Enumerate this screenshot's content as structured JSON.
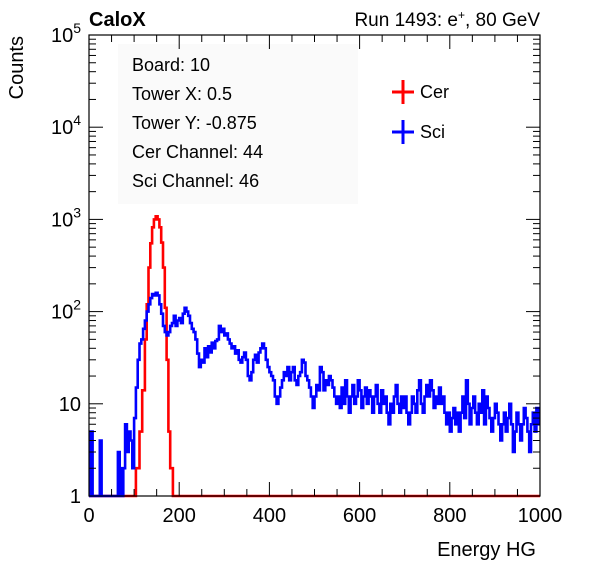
{
  "header": {
    "brand": "CaloX",
    "run_text": "Run 1493: e",
    "run_sup": "+",
    "run_tail": ", 80 GeV"
  },
  "info_box": {
    "lines": [
      "Board: 10",
      "Tower X: 0.5",
      "Tower Y: -0.875",
      "Cer Channel: 44",
      "Sci Channel: 46"
    ]
  },
  "legend": {
    "position": "top-right",
    "entries": [
      {
        "label": "Cer",
        "color": "#ff0000"
      },
      {
        "label": "Sci",
        "color": "#0000ff"
      }
    ]
  },
  "colors": {
    "cer": "#ff0000",
    "sci": "#0000ff",
    "frame": "#000000"
  },
  "chart_data": {
    "type": "line",
    "style": "step-histogram",
    "xlabel": "Energy HG",
    "ylabel": "Counts",
    "xlim": [
      0,
      1000
    ],
    "ylim": [
      1,
      100000
    ],
    "y_scale": "log",
    "grid": false,
    "x_ticks": [
      "0",
      "200",
      "400",
      "600",
      "800",
      "1000"
    ],
    "y_ticks": [
      {
        "value": 1,
        "base": "1",
        "exp": ""
      },
      {
        "value": 10,
        "base": "10",
        "exp": ""
      },
      {
        "value": 100,
        "base": "10",
        "exp": "2"
      },
      {
        "value": 1000,
        "base": "10",
        "exp": "3"
      },
      {
        "value": 10000,
        "base": "10",
        "exp": "4"
      },
      {
        "value": 100000,
        "base": "10",
        "exp": "5"
      }
    ],
    "series": [
      {
        "name": "Cer",
        "color": "#ff0000",
        "points": [
          [
            0,
            1
          ],
          [
            100,
            1
          ],
          [
            104,
            2
          ],
          [
            112,
            5
          ],
          [
            118,
            14
          ],
          [
            124,
            50
          ],
          [
            128,
            120
          ],
          [
            132,
            300
          ],
          [
            136,
            550
          ],
          [
            140,
            820
          ],
          [
            144,
            1000
          ],
          [
            148,
            1080
          ],
          [
            152,
            1000
          ],
          [
            156,
            820
          ],
          [
            160,
            560
          ],
          [
            164,
            300
          ],
          [
            168,
            110
          ],
          [
            172,
            30
          ],
          [
            176,
            5
          ],
          [
            180,
            2
          ],
          [
            186,
            1
          ],
          [
            1000,
            1
          ]
        ]
      },
      {
        "name": "Sci",
        "color": "#0000ff",
        "points": [
          [
            0,
            1
          ],
          [
            4,
            5
          ],
          [
            8,
            1
          ],
          [
            24,
            4
          ],
          [
            28,
            1
          ],
          [
            60,
            1
          ],
          [
            64,
            3
          ],
          [
            68,
            1
          ],
          [
            70,
            2
          ],
          [
            72,
            1
          ],
          [
            76,
            2
          ],
          [
            80,
            6
          ],
          [
            84,
            3
          ],
          [
            88,
            5
          ],
          [
            92,
            4
          ],
          [
            96,
            2
          ],
          [
            100,
            7
          ],
          [
            104,
            15
          ],
          [
            108,
            30
          ],
          [
            112,
            45
          ],
          [
            116,
            50
          ],
          [
            120,
            65
          ],
          [
            124,
            80
          ],
          [
            128,
            100
          ],
          [
            132,
            120
          ],
          [
            136,
            140
          ],
          [
            140,
            155
          ],
          [
            144,
            150
          ],
          [
            148,
            160
          ],
          [
            152,
            150
          ],
          [
            156,
            120
          ],
          [
            160,
            95
          ],
          [
            164,
            70
          ],
          [
            168,
            60
          ],
          [
            172,
            55
          ],
          [
            176,
            60
          ],
          [
            180,
            70
          ],
          [
            184,
            75
          ],
          [
            188,
            90
          ],
          [
            192,
            70
          ],
          [
            196,
            80
          ],
          [
            200,
            85
          ],
          [
            204,
            75
          ],
          [
            208,
            95
          ],
          [
            212,
            110
          ],
          [
            216,
            100
          ],
          [
            220,
            90
          ],
          [
            224,
            75
          ],
          [
            228,
            65
          ],
          [
            232,
            60
          ],
          [
            236,
            50
          ],
          [
            240,
            35
          ],
          [
            244,
            25
          ],
          [
            248,
            30
          ],
          [
            252,
            28
          ],
          [
            256,
            40
          ],
          [
            260,
            32
          ],
          [
            264,
            42
          ],
          [
            268,
            36
          ],
          [
            272,
            46
          ],
          [
            276,
            40
          ],
          [
            280,
            48
          ],
          [
            284,
            50
          ],
          [
            288,
            70
          ],
          [
            292,
            60
          ],
          [
            296,
            65
          ],
          [
            300,
            55
          ],
          [
            304,
            58
          ],
          [
            308,
            50
          ],
          [
            312,
            45
          ],
          [
            316,
            40
          ],
          [
            320,
            42
          ],
          [
            324,
            35
          ],
          [
            328,
            38
          ],
          [
            332,
            30
          ],
          [
            336,
            28
          ],
          [
            340,
            32
          ],
          [
            344,
            36
          ],
          [
            348,
            30
          ],
          [
            352,
            20
          ],
          [
            356,
            18
          ],
          [
            360,
            22
          ],
          [
            364,
            30
          ],
          [
            368,
            34
          ],
          [
            372,
            28
          ],
          [
            376,
            36
          ],
          [
            380,
            40
          ],
          [
            384,
            45
          ],
          [
            388,
            40
          ],
          [
            392,
            30
          ],
          [
            396,
            25
          ],
          [
            400,
            22
          ],
          [
            404,
            20
          ],
          [
            408,
            18
          ],
          [
            412,
            12
          ],
          [
            416,
            10
          ],
          [
            420,
            12
          ],
          [
            424,
            15
          ],
          [
            428,
            18
          ],
          [
            432,
            22
          ],
          [
            436,
            20
          ],
          [
            440,
            25
          ],
          [
            444,
            18
          ],
          [
            448,
            22
          ],
          [
            452,
            25
          ],
          [
            456,
            18
          ],
          [
            460,
            16
          ],
          [
            464,
            20
          ],
          [
            468,
            22
          ],
          [
            472,
            30
          ],
          [
            476,
            28
          ],
          [
            480,
            20
          ],
          [
            484,
            18
          ],
          [
            488,
            15
          ],
          [
            492,
            12
          ],
          [
            496,
            9
          ],
          [
            500,
            12
          ],
          [
            504,
            16
          ],
          [
            508,
            14
          ],
          [
            512,
            25
          ],
          [
            516,
            22
          ],
          [
            520,
            14
          ],
          [
            524,
            18
          ],
          [
            528,
            16
          ],
          [
            532,
            20
          ],
          [
            536,
            18
          ],
          [
            540,
            15
          ],
          [
            544,
            12
          ],
          [
            548,
            10
          ],
          [
            552,
            12
          ],
          [
            556,
            9
          ],
          [
            560,
            15
          ],
          [
            564,
            10
          ],
          [
            568,
            18
          ],
          [
            572,
            12
          ],
          [
            576,
            8
          ],
          [
            580,
            12
          ],
          [
            584,
            16
          ],
          [
            588,
            10
          ],
          [
            592,
            12
          ],
          [
            596,
            18
          ],
          [
            600,
            14
          ],
          [
            604,
            9
          ],
          [
            608,
            12
          ],
          [
            612,
            15
          ],
          [
            616,
            10
          ],
          [
            620,
            14
          ],
          [
            624,
            12
          ],
          [
            628,
            8
          ],
          [
            632,
            12
          ],
          [
            636,
            16
          ],
          [
            640,
            10
          ],
          [
            644,
            8
          ],
          [
            648,
            14
          ],
          [
            652,
            10
          ],
          [
            656,
            12
          ],
          [
            660,
            8
          ],
          [
            664,
            6
          ],
          [
            668,
            10
          ],
          [
            672,
            8
          ],
          [
            676,
            12
          ],
          [
            680,
            16
          ],
          [
            684,
            10
          ],
          [
            688,
            8
          ],
          [
            692,
            12
          ],
          [
            696,
            9
          ],
          [
            700,
            12
          ],
          [
            704,
            8
          ],
          [
            708,
            6
          ],
          [
            712,
            8
          ],
          [
            716,
            12
          ],
          [
            720,
            10
          ],
          [
            724,
            8
          ],
          [
            728,
            14
          ],
          [
            732,
            18
          ],
          [
            736,
            10
          ],
          [
            740,
            8
          ],
          [
            744,
            12
          ],
          [
            748,
            16
          ],
          [
            752,
            12
          ],
          [
            756,
            18
          ],
          [
            760,
            14
          ],
          [
            764,
            9
          ],
          [
            768,
            12
          ],
          [
            772,
            10
          ],
          [
            776,
            15
          ],
          [
            780,
            10
          ],
          [
            784,
            12
          ],
          [
            788,
            8
          ],
          [
            792,
            6
          ],
          [
            796,
            8
          ],
          [
            800,
            5
          ],
          [
            804,
            7
          ],
          [
            808,
            9
          ],
          [
            812,
            6
          ],
          [
            816,
            8
          ],
          [
            820,
            5
          ],
          [
            824,
            8
          ],
          [
            828,
            12
          ],
          [
            832,
            7
          ],
          [
            836,
            18
          ],
          [
            840,
            10
          ],
          [
            844,
            6
          ],
          [
            848,
            9
          ],
          [
            852,
            12
          ],
          [
            856,
            8
          ],
          [
            860,
            6
          ],
          [
            864,
            10
          ],
          [
            868,
            8
          ],
          [
            872,
            14
          ],
          [
            876,
            6
          ],
          [
            880,
            12
          ],
          [
            884,
            9
          ],
          [
            888,
            7
          ],
          [
            892,
            5
          ],
          [
            896,
            7
          ],
          [
            900,
            10
          ],
          [
            904,
            8
          ],
          [
            908,
            6
          ],
          [
            912,
            4
          ],
          [
            916,
            6
          ],
          [
            920,
            8
          ],
          [
            924,
            5
          ],
          [
            928,
            7
          ],
          [
            932,
            10
          ],
          [
            936,
            6
          ],
          [
            940,
            3
          ],
          [
            944,
            5
          ],
          [
            948,
            8
          ],
          [
            952,
            6
          ],
          [
            956,
            4
          ],
          [
            960,
            6
          ],
          [
            964,
            9
          ],
          [
            968,
            7
          ],
          [
            972,
            5
          ],
          [
            976,
            3
          ],
          [
            980,
            6
          ],
          [
            984,
            8
          ],
          [
            988,
            5
          ],
          [
            992,
            9
          ],
          [
            996,
            6
          ],
          [
            1000,
            6
          ]
        ]
      }
    ]
  }
}
